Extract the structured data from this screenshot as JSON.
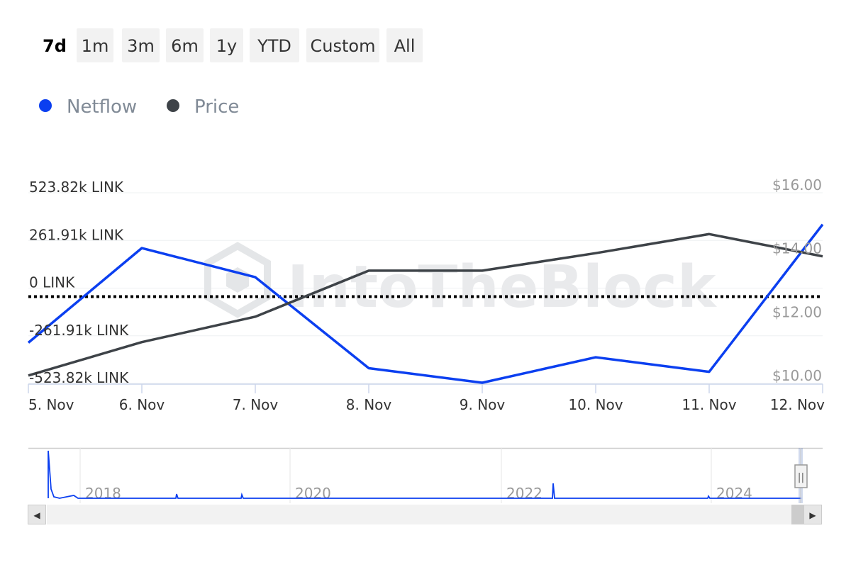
{
  "range_selector": {
    "buttons": [
      {
        "label": "7d",
        "active": true
      },
      {
        "label": "1m",
        "active": false
      },
      {
        "label": "3m",
        "active": false
      },
      {
        "label": "6m",
        "active": false
      },
      {
        "label": "1y",
        "active": false
      },
      {
        "label": "YTD",
        "active": false
      },
      {
        "label": "Custom",
        "active": false
      },
      {
        "label": "All",
        "active": false
      }
    ]
  },
  "legend": [
    {
      "label": "Netflow",
      "color": "#0b3ff0"
    },
    {
      "label": "Price",
      "color": "#3e4348"
    }
  ],
  "watermark": "IntoTheBlock",
  "chart_data": {
    "type": "line",
    "x": [
      "5. Nov",
      "6. Nov",
      "7. Nov",
      "8. Nov",
      "9. Nov",
      "10. Nov",
      "11. Nov",
      "12. Nov"
    ],
    "y_left_ticks": [
      "523.82k LINK",
      "261.91k LINK",
      "0 LINK",
      "-261.91k LINK",
      "-523.82k LINK"
    ],
    "y_left_tick_values": [
      523820,
      261910,
      0,
      -261910,
      -523820
    ],
    "y_left_range": [
      -523820,
      523820
    ],
    "y_right_ticks": [
      "$16.00",
      "$14.00",
      "$12.00",
      "$10.00"
    ],
    "y_right_tick_values": [
      16,
      14,
      12,
      10
    ],
    "y_right_range": [
      10,
      16
    ],
    "zero_line": "dotted",
    "series": [
      {
        "name": "Netflow",
        "axis": "left",
        "color": "#0b3ff0",
        "values": [
          -300000,
          220000,
          60000,
          -440000,
          -520000,
          -380000,
          -460000,
          350000
        ]
      },
      {
        "name": "Price",
        "axis": "right",
        "color": "#3e4348",
        "values": [
          10.25,
          11.3,
          12.1,
          13.55,
          13.55,
          14.1,
          14.7,
          14.0
        ]
      }
    ]
  },
  "navigator": {
    "year_labels": [
      "2018",
      "2020",
      "2022",
      "2024"
    ],
    "series_color": "#0b3ff0",
    "scroll_left": "◀",
    "scroll_right": "▶",
    "handle_glyph": "||"
  }
}
